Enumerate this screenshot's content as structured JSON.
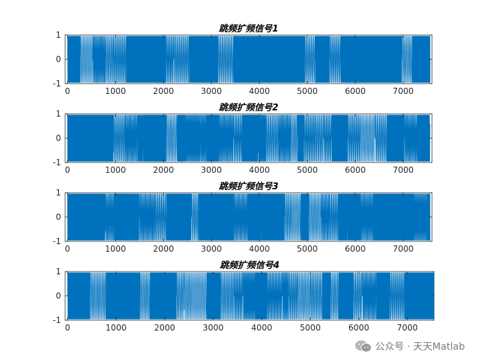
{
  "chart_data": [
    {
      "type": "line",
      "title": "跳频扩频信号1",
      "xlim": [
        -50,
        7600
      ],
      "ylim": [
        -1,
        1
      ],
      "xticks": [
        "0",
        "1000",
        "2000",
        "3000",
        "4000",
        "5000",
        "6000",
        "7000"
      ],
      "yticks": [
        "-1",
        "0",
        "1"
      ],
      "series": [
        {
          "color": "#0072bd",
          "x_range": [
            0,
            7560
          ],
          "y_range": [
            -1,
            1
          ],
          "signal": "frequency-hopping sinusoid"
        }
      ]
    },
    {
      "type": "line",
      "title": "跳频扩频信号2",
      "xlim": [
        -50,
        7600
      ],
      "ylim": [
        -1,
        1
      ],
      "xticks": [
        "0",
        "1000",
        "2000",
        "3000",
        "4000",
        "5000",
        "6000",
        "7000"
      ],
      "yticks": [
        "-1",
        "0",
        "1"
      ],
      "series": [
        {
          "color": "#0072bd",
          "x_range": [
            0,
            7560
          ],
          "y_range": [
            -1,
            1
          ],
          "signal": "frequency-hopping sinusoid"
        }
      ]
    },
    {
      "type": "line",
      "title": "跳频扩频信号3",
      "xlim": [
        -50,
        7600
      ],
      "ylim": [
        -1,
        1
      ],
      "xticks": [
        "0",
        "1000",
        "2000",
        "3000",
        "4000",
        "5000",
        "6000",
        "7000"
      ],
      "yticks": [
        "-1",
        "0",
        "1"
      ],
      "series": [
        {
          "color": "#0072bd",
          "x_range": [
            0,
            7560
          ],
          "y_range": [
            -1,
            1
          ],
          "signal": "frequency-hopping sinusoid"
        }
      ]
    },
    {
      "type": "line",
      "title": "跳频扩频信号4",
      "xlim": [
        -50,
        7550
      ],
      "ylim": [
        -1,
        1
      ],
      "xticks": [
        "0",
        "1000",
        "2000",
        "3000",
        "4000",
        "5000",
        "6000",
        "7000"
      ],
      "yticks": [
        "-1",
        "0",
        "1"
      ],
      "series": [
        {
          "color": "#0072bd",
          "x_range": [
            0,
            7550
          ],
          "y_range": [
            -1,
            1
          ],
          "signal": "frequency-hopping sinusoid"
        }
      ]
    }
  ],
  "watermark": {
    "text": "公众号 · 天天Matlab",
    "icon": "wechat-icon"
  }
}
